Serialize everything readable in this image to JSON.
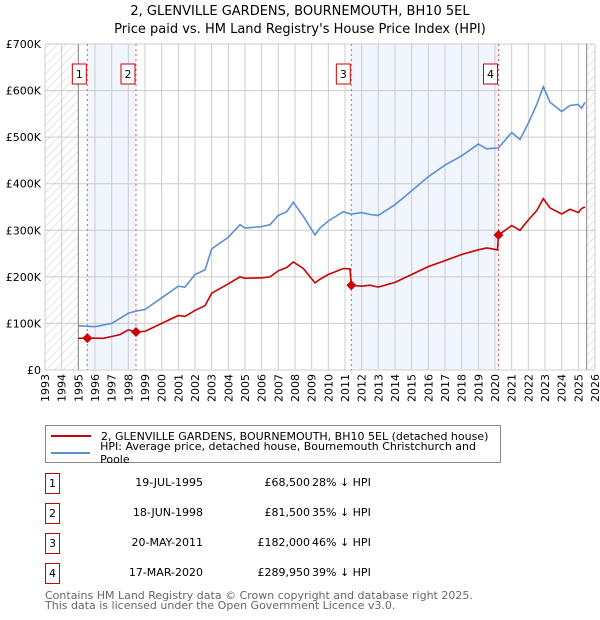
{
  "chart_data": {
    "type": "line",
    "title": "2, GLENVILLE GARDENS, BOURNEMOUTH, BH10 5EL",
    "subtitle": "Price paid vs. HM Land Registry's House Price Index (HPI)",
    "xlim": [
      1993,
      2026
    ],
    "ylim": [
      0,
      700000
    ],
    "x_ticks": [
      "1993",
      "1994",
      "1995",
      "1996",
      "1997",
      "1998",
      "1999",
      "2000",
      "2001",
      "2002",
      "2003",
      "2004",
      "2005",
      "2006",
      "2007",
      "2008",
      "2009",
      "2010",
      "2011",
      "2012",
      "2013",
      "2014",
      "2015",
      "2016",
      "2017",
      "2018",
      "2019",
      "2020",
      "2021",
      "2022",
      "2023",
      "2024",
      "2025",
      "2026"
    ],
    "y_ticks": [
      {
        "v": 0,
        "label": "£0"
      },
      {
        "v": 100000,
        "label": "£100K"
      },
      {
        "v": 200000,
        "label": "£200K"
      },
      {
        "v": 300000,
        "label": "£300K"
      },
      {
        "v": 400000,
        "label": "£400K"
      },
      {
        "v": 500000,
        "label": "£500K"
      },
      {
        "v": 600000,
        "label": "£600K"
      },
      {
        "v": 700000,
        "label": "£700K"
      }
    ],
    "grid": true,
    "hatched_ranges": [
      [
        1993,
        1995
      ],
      [
        2025.5,
        2026
      ]
    ],
    "shaded_ranges": [
      [
        1995.54,
        1998.46
      ],
      [
        2011.38,
        2020.21
      ]
    ],
    "series": [
      {
        "name": "2, GLENVILLE GARDENS, BOURNEMOUTH, BH10 5EL (detached house)",
        "color": "#cc0000",
        "x": [
          1995,
          1995.54,
          1996.5,
          1997,
          1997.5,
          1998,
          1998.46,
          1999,
          2000,
          2001,
          2001.4,
          2002,
          2002.6,
          2003,
          2004,
          2004.7,
          2005,
          2006,
          2006.5,
          2007,
          2007.5,
          2007.9,
          2008.5,
          2009.2,
          2009.5,
          2010,
          2010.9,
          2011.3,
          2011.38,
          2012,
          2012.5,
          2013,
          2014,
          2015,
          2016,
          2017,
          2018,
          2019,
          2019.5,
          2020.15,
          2020.21,
          2021,
          2021.5,
          2022,
          2022.5,
          2022.9,
          2023.3,
          2024,
          2024.5,
          2025,
          2025.2,
          2025.4
        ],
        "y": [
          68000,
          68500,
          68000,
          72000,
          76000,
          86000,
          81500,
          83000,
          100000,
          117000,
          115000,
          128000,
          138000,
          165000,
          185000,
          200000,
          197000,
          198000,
          200000,
          213000,
          220000,
          232000,
          218000,
          187000,
          195000,
          205000,
          218000,
          217000,
          182000,
          180000,
          182000,
          178000,
          188000,
          205000,
          222000,
          235000,
          248000,
          258000,
          262000,
          258000,
          289950,
          310000,
          300000,
          322000,
          342000,
          368000,
          348000,
          335000,
          345000,
          338000,
          347000,
          350000
        ]
      },
      {
        "name": "HPI: Average price, detached house, Bournemouth Christchurch and Poole",
        "color": "#5b8fd4",
        "x": [
          1995,
          1996,
          1997,
          1998,
          1998.5,
          1999,
          2000,
          2001,
          2001.4,
          2002,
          2002.6,
          2003,
          2004,
          2004.7,
          2005,
          2006,
          2006.5,
          2007,
          2007.5,
          2007.9,
          2008.5,
          2009.2,
          2009.5,
          2010,
          2010.9,
          2011.38,
          2012,
          2012.5,
          2013,
          2014,
          2015,
          2016,
          2017,
          2018,
          2019,
          2019.5,
          2020.21,
          2021,
          2021.5,
          2022,
          2022.5,
          2022.9,
          2023.3,
          2024,
          2024.5,
          2025,
          2025.2,
          2025.4
        ],
        "y": [
          95000,
          93000,
          100000,
          122000,
          127000,
          130000,
          155000,
          180000,
          178000,
          205000,
          215000,
          260000,
          285000,
          312000,
          305000,
          308000,
          312000,
          332000,
          340000,
          360000,
          330000,
          290000,
          305000,
          320000,
          340000,
          335000,
          338000,
          334000,
          332000,
          355000,
          385000,
          415000,
          440000,
          460000,
          485000,
          475000,
          477000,
          510000,
          495000,
          530000,
          570000,
          608000,
          575000,
          555000,
          568000,
          570000,
          562000,
          575000
        ]
      }
    ],
    "sales": [
      {
        "n": "1",
        "x": 1995.54,
        "y": 68500
      },
      {
        "n": "2",
        "x": 1998.46,
        "y": 81500
      },
      {
        "n": "3",
        "x": 2011.38,
        "y": 182000
      },
      {
        "n": "4",
        "x": 2020.21,
        "y": 289950
      }
    ]
  },
  "legend": {
    "property": "2, GLENVILLE GARDENS, BOURNEMOUTH, BH10 5EL (detached house)",
    "hpi": "HPI: Average price, detached house, Bournemouth Christchurch and Poole"
  },
  "transactions": [
    {
      "n": "1",
      "date": "19-JUL-1995",
      "price": "£68,500",
      "hpi": "28% ↓ HPI"
    },
    {
      "n": "2",
      "date": "18-JUN-1998",
      "price": "£81,500",
      "hpi": "35% ↓ HPI"
    },
    {
      "n": "3",
      "date": "20-MAY-2011",
      "price": "£182,000",
      "hpi": "46% ↓ HPI"
    },
    {
      "n": "4",
      "date": "17-MAR-2020",
      "price": "£289,950",
      "hpi": "39% ↓ HPI"
    }
  ],
  "footer": {
    "line1": "Contains HM Land Registry data © Crown copyright and database right 2025.",
    "line2": "This data is licensed under the Open Government Licence v3.0."
  }
}
